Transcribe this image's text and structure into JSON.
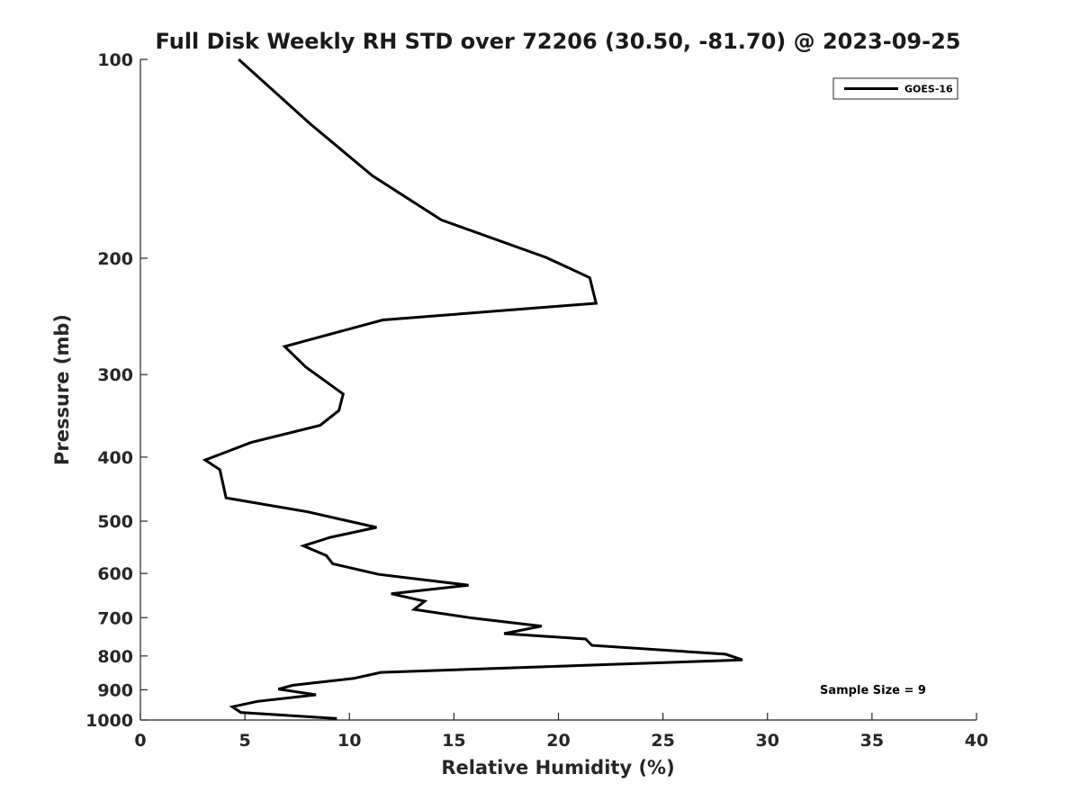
{
  "chart_data": {
    "type": "line",
    "title": "Full Disk Weekly RH STD over 72206 (30.50, -81.70) @ 2023-09-25",
    "xlabel": "Relative Humidity (%)",
    "ylabel": "Pressure (mb)",
    "xlim": [
      0,
      40
    ],
    "ylim": [
      100,
      1000
    ],
    "yscale": "log",
    "yreversed": true,
    "grid": false,
    "x_ticks": [
      0,
      5,
      10,
      15,
      20,
      25,
      30,
      35,
      40
    ],
    "y_ticks": [
      100,
      200,
      300,
      400,
      500,
      600,
      700,
      800,
      900,
      1000
    ],
    "legend": {
      "position": "top-right",
      "entries": [
        "GOES-16"
      ]
    },
    "annotation": "Sample Size = 9",
    "series": [
      {
        "name": "GOES-16",
        "color": "#000000",
        "points": [
          [
            4.7,
            100
          ],
          [
            8.1,
            125
          ],
          [
            11.1,
            150
          ],
          [
            14.4,
            175
          ],
          [
            19.4,
            199.4
          ],
          [
            21.5,
            214
          ],
          [
            21.8,
            234
          ],
          [
            11.6,
            248
          ],
          [
            6.9,
            272
          ],
          [
            7.9,
            292
          ],
          [
            9.7,
            321
          ],
          [
            9.5,
            340
          ],
          [
            8.6,
            358
          ],
          [
            5.3,
            380
          ],
          [
            3.1,
            404
          ],
          [
            3.8,
            418
          ],
          [
            4.1,
            461
          ],
          [
            8.0,
            484
          ],
          [
            11.3,
            511
          ],
          [
            9.1,
            529
          ],
          [
            7.8,
            545
          ],
          [
            8.9,
            564
          ],
          [
            9.2,
            580
          ],
          [
            11.4,
            602
          ],
          [
            15.7,
            625
          ],
          [
            12.0,
            644
          ],
          [
            13.6,
            661
          ],
          [
            13.1,
            680
          ],
          [
            15.9,
            701
          ],
          [
            19.2,
            721
          ],
          [
            17.4,
            740
          ],
          [
            21.3,
            754
          ],
          [
            21.6,
            771
          ],
          [
            28.0,
            795
          ],
          [
            28.8,
            811
          ],
          [
            11.5,
            847
          ],
          [
            10.2,
            865
          ],
          [
            7.3,
            886
          ],
          [
            6.6,
            898
          ],
          [
            8.4,
            916
          ],
          [
            5.6,
            937
          ],
          [
            4.4,
            955
          ],
          [
            4.8,
            974
          ],
          [
            9.4,
            995
          ]
        ]
      }
    ]
  }
}
